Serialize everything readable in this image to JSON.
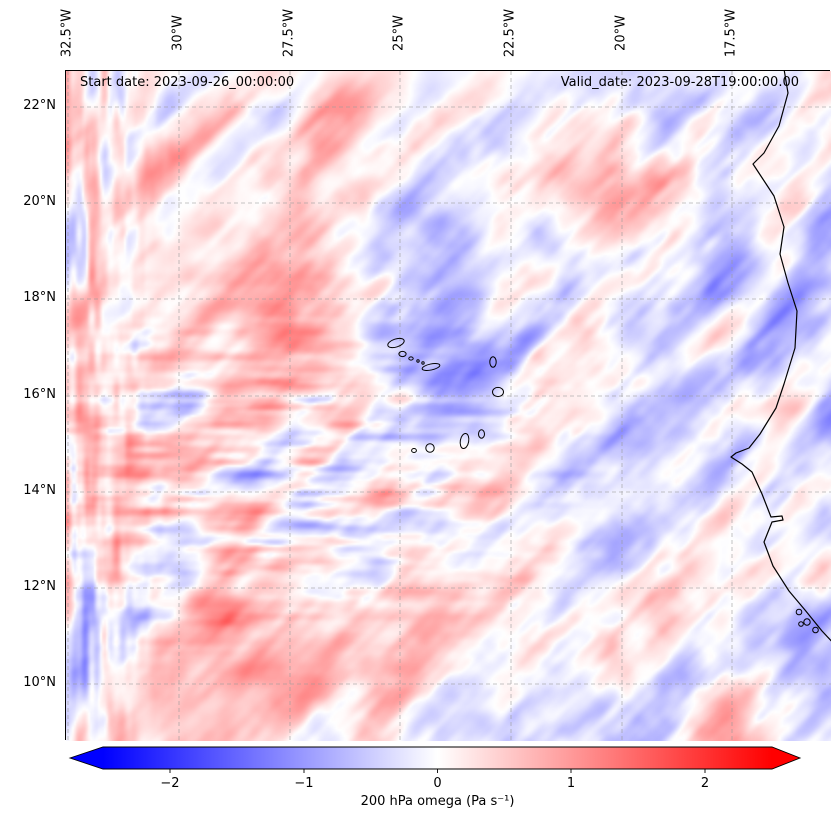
{
  "chart_data": {
    "type": "heatmap",
    "title": "",
    "variable": "200 hPa omega",
    "units": "Pa s⁻¹",
    "annotations": {
      "start_date": "Start date: 2023-09-26_00:00:00",
      "valid_date": "Valid_date: 2023-09-28T19:00:00.00"
    },
    "x_axis": {
      "side": "top",
      "tick_labels": [
        "32.5°W",
        "30°W",
        "27.5°W",
        "25°W",
        "22.5°W",
        "20°W",
        "17.5°W"
      ],
      "tick_values": [
        -32.5,
        -30,
        -27.5,
        -25,
        -22.5,
        -20,
        -17.5
      ]
    },
    "y_axis": {
      "side": "left",
      "tick_labels": [
        "22°N",
        "20°N",
        "18°N",
        "16°N",
        "14°N",
        "12°N",
        "10°N"
      ],
      "tick_values": [
        22,
        20,
        18,
        16,
        14,
        12,
        10
      ]
    },
    "extent": {
      "lon_west": -32.55,
      "lon_east": -15.27,
      "lat_south": 8.82,
      "lat_north": 22.75
    },
    "grid": {
      "visible": true,
      "style": "dashed",
      "color": "#9a9a9a"
    },
    "colorbar": {
      "label": "200 hPa omega (Pa s⁻¹)",
      "orientation": "horizontal",
      "vmin": -2.5,
      "vmax": 2.5,
      "extend": "both",
      "cmap": "bwr",
      "tick_values": [
        -2,
        -1,
        0,
        1,
        2
      ],
      "tick_labels": [
        "−2",
        "−1",
        "0",
        "1",
        "2"
      ],
      "colors": {
        "min": "#0000ff",
        "mid": "#ffffff",
        "max": "#ff0000"
      }
    },
    "note": "Continuous diverging vertical-velocity field over the eastern tropical Atlantic; values mostly within ±1 Pa s⁻¹ (pale reds and blues) with localized stronger cells; Cape Verde islands and West African coastline overlaid."
  }
}
